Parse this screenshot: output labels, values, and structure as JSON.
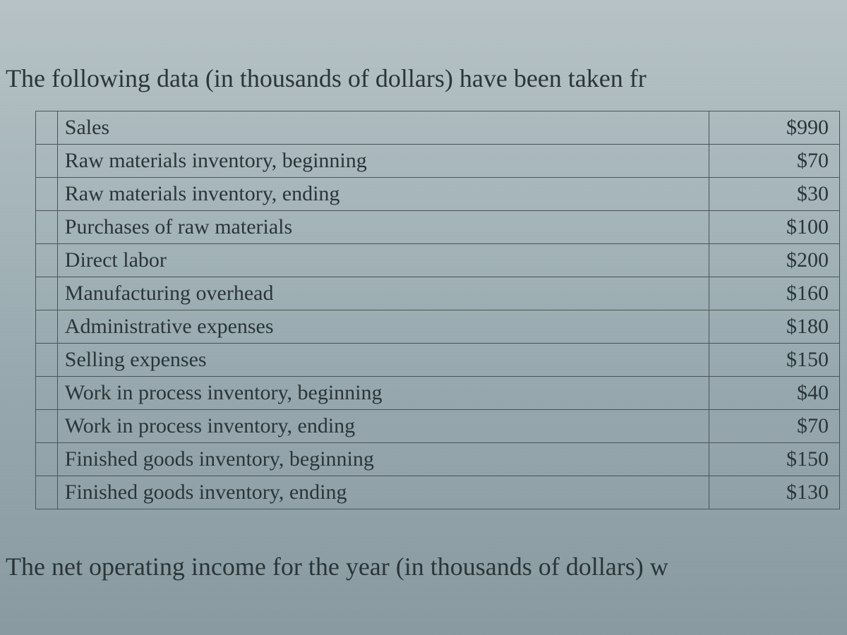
{
  "intro_text": "The following data (in thousands of dollars) have been taken fr",
  "outro_text": "The net operating income for the year (in thousands of dollars) w",
  "table": {
    "type": "table",
    "border_color": "#4a5456",
    "text_color": "#2a3538",
    "background_gradient_top": "#b8c4c8",
    "background_gradient_bottom": "#8a9ca2",
    "label_fontsize": 30,
    "value_fontsize": 30,
    "columns": [
      "label",
      "value"
    ],
    "rows": [
      {
        "label": "Sales",
        "value": "$990"
      },
      {
        "label": "Raw materials inventory, beginning",
        "value": "$70"
      },
      {
        "label": "Raw materials inventory, ending",
        "value": "$30"
      },
      {
        "label": "Purchases of raw materials",
        "value": "$100"
      },
      {
        "label": "Direct labor",
        "value": "$200"
      },
      {
        "label": "Manufacturing overhead",
        "value": "$160"
      },
      {
        "label": "Administrative expenses",
        "value": "$180"
      },
      {
        "label": "Selling expenses",
        "value": "$150"
      },
      {
        "label": "Work in process inventory, beginning",
        "value": "$40"
      },
      {
        "label": "Work in process inventory, ending",
        "value": "$70"
      },
      {
        "label": "Finished goods inventory, beginning",
        "value": "$150"
      },
      {
        "label": "Finished goods inventory, ending",
        "value": "$130"
      }
    ]
  }
}
